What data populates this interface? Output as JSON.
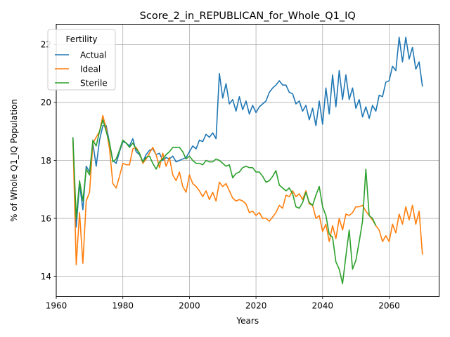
{
  "chart_data": {
    "type": "line",
    "title": "Score_2_in_REPUBLICAN_for_Whole_Q1_IQ",
    "xlabel": "Years",
    "ylabel": "% of Whole Q1_IQ Population",
    "xlim": [
      1960,
      2075
    ],
    "ylim": [
      13.3,
      22.7
    ],
    "xticks": [
      1960,
      1980,
      2000,
      2020,
      2040,
      2060
    ],
    "yticks": [
      14,
      16,
      18,
      20,
      22
    ],
    "grid": true,
    "legend": {
      "title": "Fertility",
      "placement": "top-left"
    },
    "series": [
      {
        "name": "Actual",
        "color": "#1f77b4",
        "x": [
          1965,
          1966,
          1967,
          1968,
          1969,
          1970,
          1971,
          1972,
          1973,
          1974,
          1975,
          1976,
          1977,
          1978,
          1979,
          1980,
          1981,
          1982,
          1983,
          1984,
          1985,
          1986,
          1987,
          1988,
          1989,
          1990,
          1991,
          1992,
          1993,
          1994,
          1995,
          1996,
          1997,
          1998,
          1999,
          2000,
          2001,
          2002,
          2003,
          2004,
          2005,
          2006,
          2007,
          2008,
          2009,
          2010,
          2011,
          2012,
          2013,
          2014,
          2015,
          2016,
          2017,
          2018,
          2019,
          2020,
          2021,
          2022,
          2023,
          2024,
          2025,
          2026,
          2027,
          2028,
          2029,
          2030,
          2031,
          2032,
          2033,
          2034,
          2035,
          2036,
          2037,
          2038,
          2039,
          2040,
          2041,
          2042,
          2043,
          2044,
          2045,
          2046,
          2047,
          2048,
          2049,
          2050,
          2051,
          2052,
          2053,
          2054,
          2055,
          2056,
          2057,
          2058,
          2059,
          2060,
          2061,
          2062,
          2063,
          2064,
          2065,
          2066,
          2067,
          2068,
          2069,
          2070
        ],
        "y": [
          18.8,
          15.7,
          17.2,
          16.3,
          17.8,
          17.6,
          18.6,
          17.8,
          18.7,
          19.2,
          19.2,
          18.6,
          18.0,
          17.9,
          18.3,
          18.65,
          18.6,
          18.5,
          18.75,
          18.3,
          18.2,
          17.95,
          18.2,
          18.35,
          18.4,
          18.2,
          18.25,
          18.0,
          18.1,
          18.05,
          18.15,
          17.95,
          18.0,
          18.05,
          18.1,
          18.3,
          18.5,
          18.4,
          18.7,
          18.65,
          18.9,
          18.8,
          18.95,
          18.75,
          21.0,
          20.15,
          20.65,
          19.95,
          20.1,
          19.7,
          20.2,
          19.75,
          20.05,
          19.6,
          19.9,
          19.65,
          19.85,
          19.95,
          20.05,
          20.35,
          20.5,
          20.6,
          20.75,
          20.6,
          20.6,
          20.35,
          20.3,
          19.95,
          20.05,
          19.7,
          19.9,
          19.4,
          19.8,
          19.2,
          20.05,
          19.25,
          20.5,
          19.6,
          20.95,
          19.85,
          21.1,
          20.1,
          20.95,
          20.1,
          20.5,
          19.8,
          20.1,
          19.5,
          19.85,
          19.45,
          19.9,
          19.7,
          20.25,
          20.2,
          20.7,
          20.75,
          21.25,
          21.1,
          22.25,
          21.4,
          22.25,
          21.5,
          21.9,
          21.15,
          21.4,
          20.55
        ]
      },
      {
        "name": "Ideal",
        "color": "#ff7f0e",
        "x": [
          1965,
          1966,
          1967,
          1968,
          1969,
          1970,
          1971,
          1972,
          1973,
          1974,
          1975,
          1976,
          1977,
          1978,
          1979,
          1980,
          1981,
          1982,
          1983,
          1984,
          1985,
          1986,
          1987,
          1988,
          1989,
          1990,
          1991,
          1992,
          1993,
          1994,
          1995,
          1996,
          1997,
          1998,
          1999,
          2000,
          2001,
          2002,
          2003,
          2004,
          2005,
          2006,
          2007,
          2008,
          2009,
          2010,
          2011,
          2012,
          2013,
          2014,
          2015,
          2016,
          2017,
          2018,
          2019,
          2020,
          2021,
          2022,
          2023,
          2024,
          2025,
          2026,
          2027,
          2028,
          2029,
          2030,
          2031,
          2032,
          2033,
          2034,
          2035,
          2036,
          2037,
          2038,
          2039,
          2040,
          2041,
          2042,
          2043,
          2044,
          2045,
          2046,
          2047,
          2048,
          2049,
          2050,
          2051,
          2052,
          2053,
          2054,
          2055,
          2056,
          2057,
          2058,
          2059,
          2060,
          2061,
          2062,
          2063,
          2064,
          2065,
          2066,
          2067,
          2068,
          2069,
          2070
        ],
        "y": [
          18.8,
          14.4,
          16.2,
          14.45,
          16.6,
          16.9,
          18.6,
          18.8,
          19.0,
          19.55,
          19.1,
          18.4,
          17.2,
          17.05,
          17.45,
          17.9,
          17.85,
          17.85,
          18.4,
          18.45,
          18.25,
          17.9,
          18.05,
          18.25,
          18.45,
          18.2,
          17.75,
          18.25,
          17.8,
          18.1,
          17.5,
          17.3,
          17.6,
          17.1,
          16.9,
          17.5,
          17.2,
          17.1,
          16.95,
          16.75,
          16.95,
          16.65,
          16.9,
          16.6,
          17.25,
          17.1,
          17.2,
          16.95,
          16.7,
          16.6,
          16.65,
          16.6,
          16.5,
          16.2,
          16.25,
          16.1,
          16.2,
          16.0,
          16.0,
          15.9,
          16.05,
          16.2,
          16.45,
          16.35,
          16.8,
          16.75,
          16.95,
          16.75,
          16.85,
          16.65,
          16.95,
          16.5,
          16.45,
          16.0,
          16.1,
          15.55,
          15.8,
          15.2,
          15.75,
          15.3,
          16.0,
          15.6,
          16.15,
          16.1,
          16.2,
          16.4,
          16.4,
          16.45,
          16.25,
          16.1,
          15.95,
          15.75,
          15.6,
          15.2,
          15.4,
          15.2,
          15.8,
          15.5,
          16.15,
          15.8,
          16.4,
          15.95,
          16.45,
          15.8,
          16.25,
          14.75
        ]
      },
      {
        "name": "Sterile",
        "color": "#2ca02c",
        "x": [
          1965,
          1966,
          1967,
          1968,
          1969,
          1970,
          1971,
          1972,
          1973,
          1974,
          1975,
          1976,
          1977,
          1978,
          1979,
          1980,
          1981,
          1982,
          1983,
          1984,
          1985,
          1986,
          1987,
          1988,
          1989,
          1990,
          1991,
          1992,
          1993,
          1994,
          1995,
          1996,
          1997,
          1998,
          1999,
          2000,
          2001,
          2002,
          2003,
          2004,
          2005,
          2006,
          2007,
          2008,
          2009,
          2010,
          2011,
          2012,
          2013,
          2014,
          2015,
          2016,
          2017,
          2018,
          2019,
          2020,
          2021,
          2022,
          2023,
          2024,
          2025,
          2026,
          2027,
          2028,
          2029,
          2030,
          2031,
          2032,
          2033,
          2034,
          2035,
          2036,
          2037,
          2038,
          2039,
          2040,
          2041,
          2042,
          2043,
          2044,
          2045,
          2046,
          2047,
          2048,
          2049,
          2050,
          2051,
          2052,
          2053,
          2054,
          2055,
          2056
        ],
        "y": [
          18.8,
          16.0,
          17.3,
          16.6,
          17.7,
          17.5,
          18.7,
          18.5,
          19.0,
          19.4,
          19.0,
          18.6,
          17.95,
          18.05,
          18.35,
          18.7,
          18.6,
          18.45,
          18.6,
          18.4,
          18.25,
          17.95,
          18.1,
          18.15,
          17.9,
          17.7,
          17.95,
          18.05,
          18.2,
          18.3,
          18.45,
          18.45,
          18.45,
          18.3,
          18.05,
          18.15,
          18.0,
          17.9,
          17.9,
          17.85,
          18.0,
          17.95,
          17.95,
          18.05,
          18.0,
          17.9,
          17.8,
          17.85,
          17.4,
          17.55,
          17.6,
          17.75,
          17.8,
          17.75,
          17.75,
          17.6,
          17.6,
          17.45,
          17.25,
          17.3,
          17.45,
          17.65,
          17.15,
          17.05,
          16.95,
          17.05,
          16.85,
          16.4,
          16.35,
          16.55,
          16.9,
          16.55,
          16.45,
          16.8,
          17.1,
          16.4,
          16.1,
          15.45,
          15.35,
          14.5,
          14.25,
          13.75,
          14.7,
          15.6,
          14.25,
          14.55,
          15.2,
          15.9,
          17.7,
          16.1,
          16.0,
          15.75
        ]
      }
    ]
  }
}
